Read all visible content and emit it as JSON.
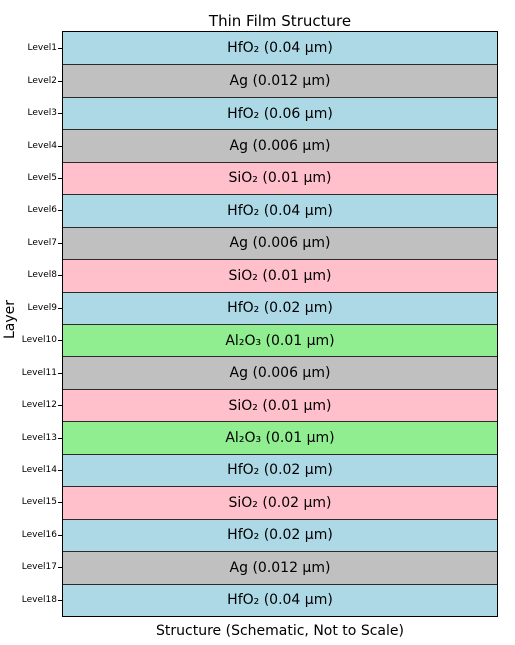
{
  "title": "Thin Film Structure",
  "xlabel": "Structure (Schematic, Not to Scale)",
  "ylabel": "Layer",
  "colors": {
    "HfO2": "#add8e6",
    "Ag": "#c0c0c0",
    "SiO2": "#ffc0cb",
    "Al2O3": "#90ee90"
  },
  "layers": [
    {
      "level": "Level1",
      "label": "HfO₂ (0.04 µm)",
      "material": "HfO2"
    },
    {
      "level": "Level2",
      "label": "Ag (0.012 µm)",
      "material": "Ag"
    },
    {
      "level": "Level3",
      "label": "HfO₂ (0.06 µm)",
      "material": "HfO2"
    },
    {
      "level": "Level4",
      "label": "Ag (0.006 µm)",
      "material": "Ag"
    },
    {
      "level": "Level5",
      "label": "SiO₂ (0.01 µm)",
      "material": "SiO2"
    },
    {
      "level": "Level6",
      "label": "HfO₂ (0.04 µm)",
      "material": "HfO2"
    },
    {
      "level": "Level7",
      "label": "Ag (0.006 µm)",
      "material": "Ag"
    },
    {
      "level": "Level8",
      "label": "SiO₂ (0.01 µm)",
      "material": "SiO2"
    },
    {
      "level": "Level9",
      "label": "HfO₂ (0.02 µm)",
      "material": "HfO2"
    },
    {
      "level": "Level10",
      "label": "Al₂O₃ (0.01 µm)",
      "material": "Al2O3"
    },
    {
      "level": "Level11",
      "label": "Ag (0.006 µm)",
      "material": "Ag"
    },
    {
      "level": "Level12",
      "label": "SiO₂ (0.01 µm)",
      "material": "SiO2"
    },
    {
      "level": "Level13",
      "label": "Al₂O₃ (0.01 µm)",
      "material": "Al2O3"
    },
    {
      "level": "Level14",
      "label": "HfO₂ (0.02 µm)",
      "material": "HfO2"
    },
    {
      "level": "Level15",
      "label": "SiO₂ (0.02 µm)",
      "material": "SiO2"
    },
    {
      "level": "Level16",
      "label": "HfO₂ (0.02 µm)",
      "material": "HfO2"
    },
    {
      "level": "Level17",
      "label": "Ag (0.012 µm)",
      "material": "Ag"
    },
    {
      "level": "Level18",
      "label": "HfO₂ (0.04 µm)",
      "material": "HfO2"
    }
  ]
}
